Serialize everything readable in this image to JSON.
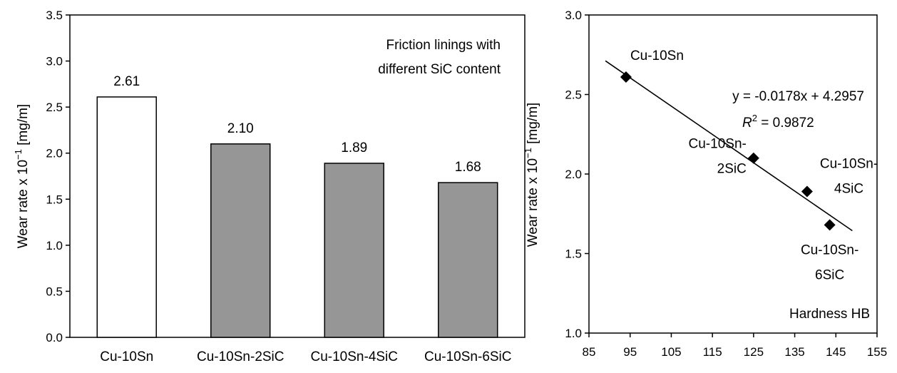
{
  "chart_data": [
    {
      "type": "bar",
      "ylabel_main": "Wear rate x 10",
      "ylabel_exp": "−1",
      "ylabel_unit": " [mg/m]",
      "ylim": [
        0,
        3.5
      ],
      "yticks": [
        "0.0",
        "0.5",
        "1.0",
        "1.5",
        "2.0",
        "2.5",
        "3.0",
        "3.5"
      ],
      "categories": [
        "Cu-10Sn",
        "Cu-10Sn-2SiC",
        "Cu-10Sn-4SiC",
        "Cu-10Sn-6SiC"
      ],
      "values": [
        2.61,
        2.1,
        1.89,
        1.68
      ],
      "value_labels": [
        "2.61",
        "2.10",
        "1.89",
        "1.68"
      ],
      "bar_colors": [
        "#ffffff",
        "#969696",
        "#969696",
        "#969696"
      ],
      "annotation": [
        "Friction linings with",
        "different SiC content"
      ],
      "grid": false
    },
    {
      "type": "scatter",
      "ylabel_main": "Wear rate x 10",
      "ylabel_exp": "−1",
      "ylabel_unit": " [mg/m]",
      "xlim": [
        85,
        155
      ],
      "ylim": [
        1.0,
        3.0
      ],
      "xticks": [
        "85",
        "95",
        "105",
        "115",
        "125",
        "135",
        "145",
        "155"
      ],
      "yticks": [
        "1.0",
        "1.5",
        "2.0",
        "2.5",
        "3.0"
      ],
      "points": [
        {
          "x": 94,
          "y": 2.61,
          "label": [
            "Cu-10Sn"
          ]
        },
        {
          "x": 125,
          "y": 2.1,
          "label": [
            "Cu-10Sn-",
            "2SiC"
          ]
        },
        {
          "x": 138,
          "y": 1.89,
          "label": [
            "Cu-10Sn-",
            "4SiC"
          ]
        },
        {
          "x": 143.5,
          "y": 1.68,
          "label": [
            "Cu-10Sn-",
            "6SiC"
          ]
        }
      ],
      "trendline": {
        "slope": -0.0178,
        "intercept": 4.2957,
        "x_range": [
          89,
          149
        ]
      },
      "equation": "y = -0.0178x + 4.2957",
      "r2_letter": "R",
      "r2_exp": "2",
      "r2_value": " = 0.9872",
      "xlabel": "Hardness HB",
      "marker_color": "#000000",
      "grid": false
    }
  ]
}
